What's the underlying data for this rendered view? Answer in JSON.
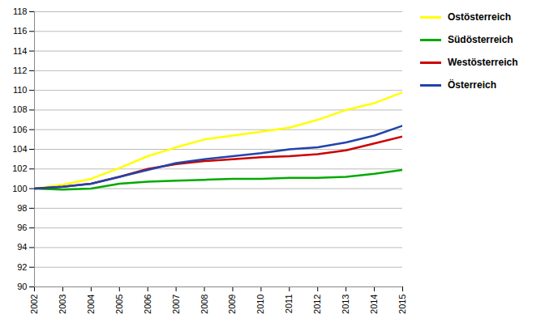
{
  "chart_data": {
    "type": "line",
    "x": [
      2002,
      2003,
      2004,
      2005,
      2006,
      2007,
      2008,
      2009,
      2010,
      2011,
      2012,
      2013,
      2014,
      2015
    ],
    "series": [
      {
        "name": "Ostösterreich",
        "color": "#ffff00",
        "values": [
          100.0,
          100.4,
          101.0,
          102.1,
          103.3,
          104.2,
          105.0,
          105.4,
          105.8,
          106.2,
          107.0,
          108.0,
          108.7,
          109.8
        ]
      },
      {
        "name": "Südösterreich",
        "color": "#00aa00",
        "values": [
          100.0,
          99.9,
          100.0,
          100.5,
          100.7,
          100.8,
          100.9,
          101.0,
          101.0,
          101.1,
          101.1,
          101.2,
          101.5,
          101.9
        ]
      },
      {
        "name": "Westösterreich",
        "color": "#cc0000",
        "values": [
          100.0,
          100.2,
          100.5,
          101.2,
          102.0,
          102.5,
          102.8,
          103.0,
          103.2,
          103.3,
          103.5,
          103.9,
          104.6,
          105.3
        ]
      },
      {
        "name": "Österreich",
        "color": "#2244aa",
        "values": [
          100.0,
          100.2,
          100.5,
          101.2,
          101.9,
          102.6,
          103.0,
          103.3,
          103.6,
          104.0,
          104.2,
          104.7,
          105.4,
          106.4
        ]
      }
    ],
    "xlim": [
      2002,
      2015
    ],
    "xticks": [
      2002,
      2003,
      2004,
      2005,
      2006,
      2007,
      2008,
      2009,
      2010,
      2011,
      2012,
      2013,
      2014,
      2015
    ],
    "ylim": [
      90,
      118
    ],
    "yticks": [
      90,
      92,
      94,
      96,
      98,
      100,
      102,
      104,
      106,
      108,
      110,
      112,
      114,
      116,
      118
    ],
    "grid": "y",
    "legend": "upper right"
  }
}
